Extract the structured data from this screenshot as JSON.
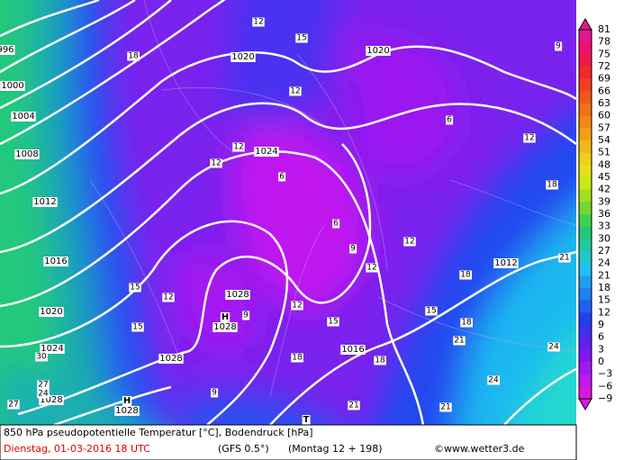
{
  "isobar_labels": [
    "996",
    "1000",
    "1004",
    "1008",
    "1012",
    "1016",
    "1020",
    "1024",
    "1028",
    "1028",
    "1020",
    "1020",
    "1024",
    "1028",
    "1028",
    "1016",
    "1012",
    "1028"
  ],
  "pressure_centers": [
    "H",
    "H",
    "T"
  ],
  "temp_labels": [
    "12",
    "15",
    "18",
    "12",
    "9",
    "6",
    "12",
    "12",
    "6",
    "12",
    "18",
    "6",
    "9",
    "12",
    "12",
    "18",
    "21",
    "15",
    "12",
    "12",
    "9",
    "15",
    "15",
    "18",
    "15",
    "21",
    "18",
    "18",
    "24",
    "30",
    "27",
    "24",
    "27",
    "9",
    "21",
    "24",
    "21"
  ],
  "colorbar": {
    "labels": [
      "81",
      "78",
      "75",
      "72",
      "69",
      "66",
      "63",
      "60",
      "57",
      "54",
      "51",
      "48",
      "45",
      "42",
      "39",
      "36",
      "33",
      "30",
      "27",
      "24",
      "21",
      "18",
      "15",
      "12",
      "9",
      "6",
      "3",
      "0",
      "−3",
      "−6",
      "−9"
    ]
  },
  "footer": {
    "title": "850 hPa pseudopotentielle Temperatur [°C], Bodendruck [hPa]",
    "date": "Dienstag, 01-03-2016  18 UTC",
    "model": "(GFS 0.5°)",
    "run": "(Montag 12 + 198)",
    "credit": "©www.wetter3.de"
  }
}
